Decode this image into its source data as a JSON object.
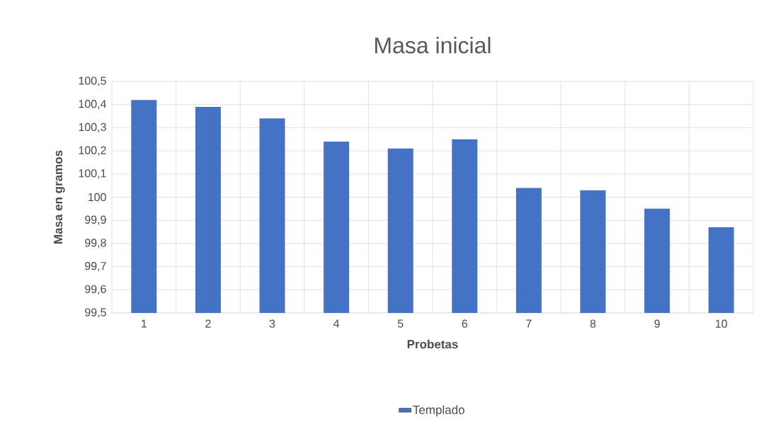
{
  "chart_data": {
    "type": "bar",
    "title": "Masa inicial",
    "xlabel": "Probetas",
    "ylabel": "Masa en gramos",
    "categories": [
      "1",
      "2",
      "3",
      "4",
      "5",
      "6",
      "7",
      "8",
      "9",
      "10"
    ],
    "series": [
      {
        "name": "Templado",
        "color": "#4472c4",
        "values": [
          100.42,
          100.39,
          100.34,
          100.24,
          100.21,
          100.25,
          100.04,
          100.03,
          99.95,
          99.87
        ]
      }
    ],
    "ylim": [
      99.5,
      100.5
    ],
    "yticks": [
      {
        "value": 99.5,
        "label": "99,5"
      },
      {
        "value": 99.6,
        "label": "99,6"
      },
      {
        "value": 99.7,
        "label": "99,7"
      },
      {
        "value": 99.8,
        "label": "99,8"
      },
      {
        "value": 99.9,
        "label": "99,9"
      },
      100,
      {
        "value": 100.1,
        "label": "100,1"
      },
      {
        "value": 100.2,
        "label": "100,2"
      },
      {
        "value": 100.3,
        "label": "100,3"
      },
      {
        "value": 100.4,
        "label": "100,4"
      },
      {
        "value": 100.5,
        "label": "100,5"
      }
    ],
    "grid": true,
    "legend": "bottom"
  }
}
